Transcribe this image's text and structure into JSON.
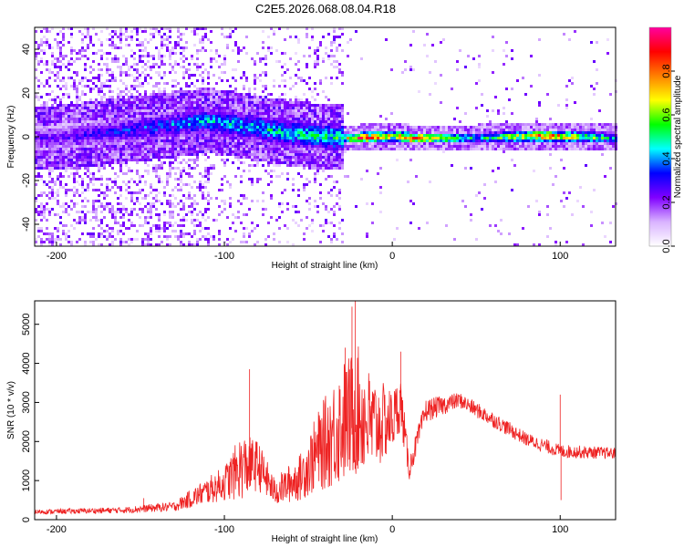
{
  "figure": {
    "title": "C2E5.2026.068.08.04.R18"
  },
  "chart_data": [
    {
      "type": "heatmap",
      "xlabel": "Height of straight line (km)",
      "ylabel": "Frequency (Hz)",
      "xlim": [
        -213,
        133
      ],
      "ylim": [
        -50,
        50
      ],
      "xticks": [
        -200,
        -100,
        0,
        100
      ],
      "yticks": [
        -40,
        -20,
        0,
        20,
        40
      ],
      "colorbar": {
        "label": "Normalized spectral amplitude",
        "range": [
          0,
          1
        ],
        "ticks": [
          "0.0",
          "0.2",
          "0.4",
          "0.6",
          "0.8"
        ],
        "ticks_values": [
          0.0,
          0.2,
          0.4,
          0.6,
          0.8
        ],
        "colormap": [
          "#ffffff",
          "#d9b3ff",
          "#8000ff",
          "#0000ff",
          "#00ffff",
          "#00ff00",
          "#ffff00",
          "#ff8000",
          "#ff0000",
          "#ff00a0"
        ]
      },
      "ridge": [
        {
          "x": -200,
          "center": 0,
          "amp": 0.25
        },
        {
          "x": -110,
          "center": 8,
          "amp": 0.45
        },
        {
          "x": -60,
          "center": 2,
          "amp": 0.5
        },
        {
          "x": -30,
          "center": 0,
          "amp": 0.55
        },
        {
          "x": -20,
          "center": 0,
          "amp": 0.95
        },
        {
          "x": 0,
          "center": 1,
          "amp": 0.7
        },
        {
          "x": 10,
          "center": 0,
          "amp": 0.95
        },
        {
          "x": 50,
          "center": 0,
          "amp": 0.45
        },
        {
          "x": 90,
          "center": 1,
          "amp": 0.9
        },
        {
          "x": 133,
          "center": 0,
          "amp": 0.45
        }
      ]
    },
    {
      "type": "line",
      "xlabel": "Height of straight line (km)",
      "ylabel": "SNR (10 * v/v)",
      "xlim": [
        -213,
        133
      ],
      "ylim": [
        0,
        5600
      ],
      "xticks": [
        -200,
        -100,
        0,
        100
      ],
      "yticks": [
        0,
        1000,
        2000,
        3000,
        4000,
        5000
      ],
      "series": [
        {
          "color": "#ee2222",
          "envelope": [
            {
              "x": -213,
              "base": 180,
              "spread": 120
            },
            {
              "x": -160,
              "base": 220,
              "spread": 160
            },
            {
              "x": -130,
              "base": 300,
              "spread": 250
            },
            {
              "x": -100,
              "base": 800,
              "spread": 900
            },
            {
              "x": -90,
              "base": 1100,
              "spread": 1700
            },
            {
              "x": -80,
              "base": 1200,
              "spread": 1300
            },
            {
              "x": -70,
              "base": 600,
              "spread": 700
            },
            {
              "x": -55,
              "base": 900,
              "spread": 1200
            },
            {
              "x": -45,
              "base": 1400,
              "spread": 2000
            },
            {
              "x": -30,
              "base": 2000,
              "spread": 3200
            },
            {
              "x": -20,
              "base": 2300,
              "spread": 3300
            },
            {
              "x": -12,
              "base": 2000,
              "spread": 2600
            },
            {
              "x": 0,
              "base": 2300,
              "spread": 1600
            },
            {
              "x": 5,
              "base": 2800,
              "spread": 1400
            },
            {
              "x": 10,
              "base": 1200,
              "spread": 600
            },
            {
              "x": 20,
              "base": 2700,
              "spread": 600
            },
            {
              "x": 40,
              "base": 3000,
              "spread": 400
            },
            {
              "x": 60,
              "base": 2500,
              "spread": 400
            },
            {
              "x": 80,
              "base": 2000,
              "spread": 350
            },
            {
              "x": 100,
              "base": 1700,
              "spread": 350
            },
            {
              "x": 133,
              "base": 1650,
              "spread": 300
            }
          ],
          "spikes": [
            {
              "x": -85,
              "y": 3850
            },
            {
              "x": -22,
              "y": 5600
            },
            {
              "x": -24,
              "y": 5450
            },
            {
              "x": -28,
              "y": 4400
            },
            {
              "x": 5,
              "y": 4300
            },
            {
              "x": 100,
              "y": 3200
            },
            {
              "x": 100.5,
              "y": 500
            },
            {
              "x": -148,
              "y": 550
            }
          ]
        }
      ]
    }
  ]
}
